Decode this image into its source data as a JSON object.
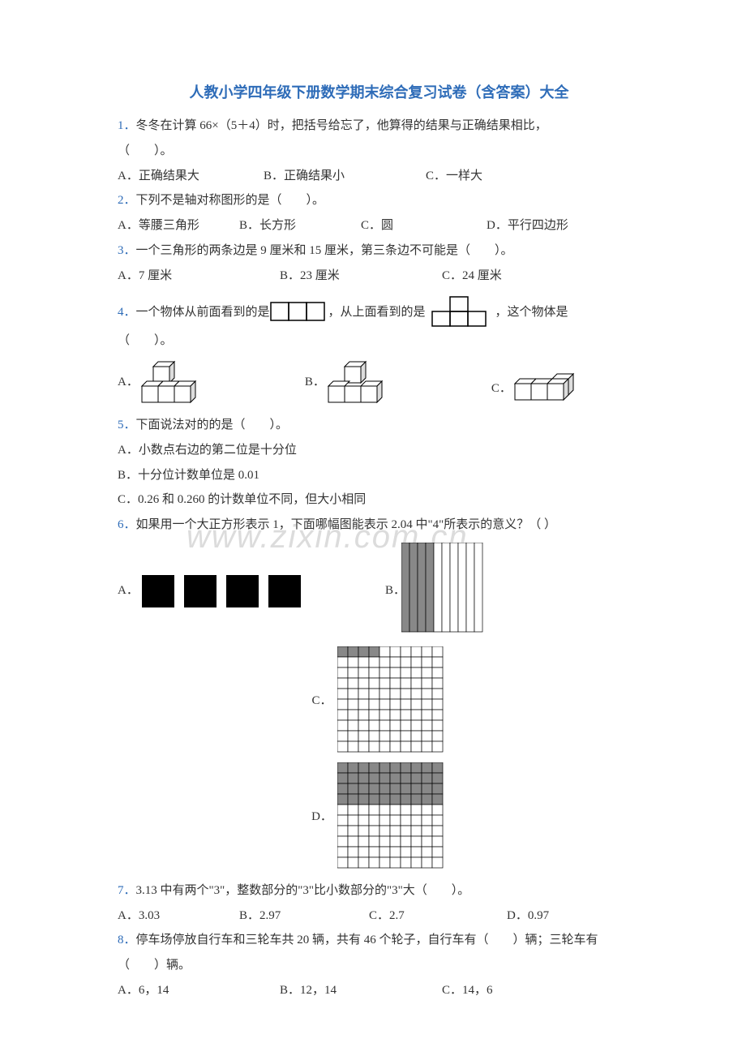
{
  "title": "人教小学四年级下册数学期末综合复习试卷（含答案）大全",
  "watermark": "www.zixin.com.cn",
  "q1": {
    "num": "1．",
    "text_a": "冬冬在计算 66×（5＋4）时，把括号给忘了，他算得的结果与正确结果相比，",
    "text_b": "（　　）。",
    "optA": "A．正确结果大",
    "optB": "B．正确结果小",
    "optC": "C．一样大"
  },
  "q2": {
    "num": "2．",
    "text": "下列不是轴对称图形的是（　　）。",
    "optA": "A．等腰三角形",
    "optB": "B．长方形",
    "optC": "C．圆",
    "optD": "D．平行四边形"
  },
  "q3": {
    "num": "3．",
    "text": "一个三角形的两条边是 9 厘米和 15 厘米，第三条边不可能是（　　）。",
    "optA": "A．7 厘米",
    "optB": "B．23 厘米",
    "optC": "C．24 厘米"
  },
  "q4": {
    "num": "4．",
    "text_a": "一个物体从前面看到的是",
    "text_b": "，从上面看到的是",
    "text_c": "，这个物体是",
    "text_d": "（　　）。",
    "optA": "A．",
    "optB": "B．",
    "optC": "C．"
  },
  "q5": {
    "num": "5．",
    "text": "下面说法对的的是（　　）。",
    "optA": "A．小数点右边的第二位是十分位",
    "optB": "B．十分位计数单位是 0.01",
    "optC": "C．0.26 和 0.260 的计数单位不同，但大小相同"
  },
  "q6": {
    "num": "6．",
    "text": "如果用一个大正方形表示 1，下面哪幅图能表示 2.04 中\"4\"所表示的意义？（  ）",
    "optA": "A．",
    "optB": "B．",
    "optC": "C．",
    "optD": "D．"
  },
  "q7": {
    "num": "7．",
    "text": "3.13 中有两个\"3\"，整数部分的\"3\"比小数部分的\"3\"大（　　）。",
    "optA": "A．3.03",
    "optB": "B．2.97",
    "optC": "C．2.7",
    "optD": "D．0.97"
  },
  "q8": {
    "num": "8．",
    "text_a": "停车场停放自行车和三轮车共 20 辆，共有 46 个轮子，自行车有（　　）辆；三轮车有",
    "text_b": "（　　）辆。",
    "optA": "A．6，14",
    "optB": "B．12，14",
    "optC": "C．14，6"
  },
  "colors": {
    "title": "#2e6cb8",
    "qnum": "#2e6cb8",
    "text": "#333333",
    "watermark": "#dcdcdc",
    "black": "#000000",
    "grid_grey": "#808080"
  }
}
